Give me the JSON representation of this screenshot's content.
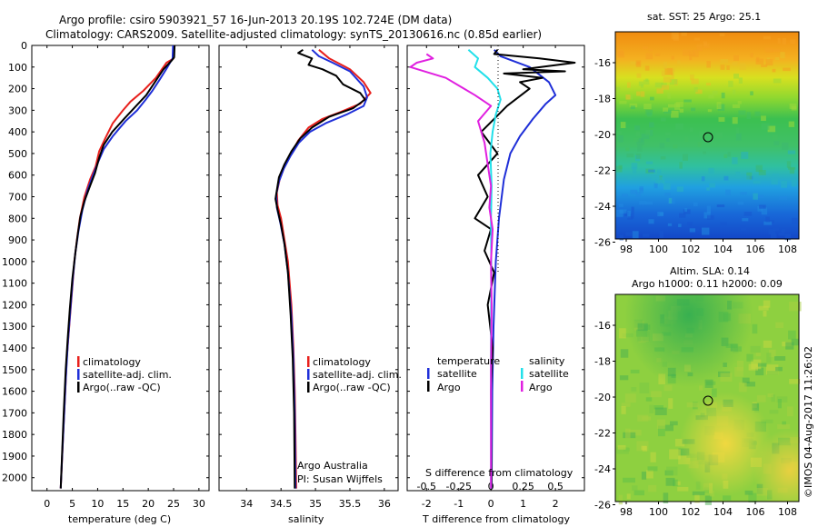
{
  "header": {
    "line1": "Argo profile: csiro 5903921_57 16-Jun-2013 20.19S 102.724E (DM data)",
    "line2": "Climatology: CARS2009. Satellite-adjusted climatology: synTS_20130616.nc (0.85d earlier)"
  },
  "colors": {
    "climatology": "#e8201c",
    "satellite": "#1f2fd8",
    "argo": "#000000",
    "sat_temp": "#1f2fd8",
    "sat_sal": "#22e0ea",
    "argo_sal": "#e020e0"
  },
  "chart_data": [
    {
      "type": "line",
      "name": "temperature-profile",
      "xlabel": "temperature (deg C)",
      "xlim": [
        -3,
        32
      ],
      "xticks": [
        0,
        5,
        10,
        15,
        20,
        25,
        30
      ],
      "ylim": [
        0,
        2060
      ],
      "yticks": [
        0,
        100,
        200,
        300,
        400,
        500,
        600,
        700,
        800,
        900,
        1000,
        1100,
        1200,
        1300,
        1400,
        1500,
        1600,
        1700,
        1800,
        1900,
        2000
      ],
      "legend": [
        "climatology",
        "satellite-adj. clim.",
        "Argo(..raw -QC)"
      ],
      "series": [
        {
          "name": "climatology",
          "color": "#e8201c",
          "points": [
            [
              25,
              0
            ],
            [
              25,
              60
            ],
            [
              23.6,
              80
            ],
            [
              21.5,
              150
            ],
            [
              19,
              210
            ],
            [
              16.5,
              260
            ],
            [
              15,
              300
            ],
            [
              13,
              360
            ],
            [
              11.5,
              430
            ],
            [
              10.3,
              490
            ],
            [
              9.6,
              560
            ],
            [
              8.5,
              620
            ],
            [
              7.4,
              700
            ],
            [
              6.5,
              800
            ],
            [
              5.9,
              900
            ],
            [
              5.4,
              1000
            ],
            [
              4.9,
              1150
            ],
            [
              4.4,
              1300
            ],
            [
              3.9,
              1450
            ],
            [
              3.6,
              1600
            ],
            [
              3.2,
              1800
            ],
            [
              2.9,
              1950
            ],
            [
              2.7,
              2050
            ]
          ]
        },
        {
          "name": "satellite-adj. clim.",
          "color": "#1f2fd8",
          "points": [
            [
              24.9,
              0
            ],
            [
              24.8,
              60
            ],
            [
              23.8,
              100
            ],
            [
              22.2,
              160
            ],
            [
              20.8,
              210
            ],
            [
              19.5,
              250
            ],
            [
              17.8,
              300
            ],
            [
              15.5,
              350
            ],
            [
              13,
              420
            ],
            [
              11.2,
              480
            ],
            [
              10.1,
              540
            ],
            [
              9.1,
              600
            ],
            [
              8,
              670
            ],
            [
              7,
              760
            ],
            [
              6.2,
              860
            ],
            [
              5.6,
              960
            ],
            [
              5.1,
              1080
            ],
            [
              4.6,
              1230
            ],
            [
              4.1,
              1380
            ],
            [
              3.7,
              1550
            ],
            [
              3.3,
              1750
            ],
            [
              3,
              1900
            ],
            [
              2.7,
              2050
            ]
          ]
        },
        {
          "name": "Argo(..raw -QC)",
          "color": "#000000",
          "points": [
            [
              25.2,
              0
            ],
            [
              25.1,
              55
            ],
            [
              24.6,
              70
            ],
            [
              23,
              110
            ],
            [
              21.3,
              170
            ],
            [
              19.6,
              230
            ],
            [
              17.6,
              280
            ],
            [
              15.2,
              340
            ],
            [
              12.9,
              400
            ],
            [
              11.2,
              460
            ],
            [
              10.3,
              520
            ],
            [
              9.5,
              590
            ],
            [
              8.5,
              650
            ],
            [
              7.4,
              720
            ],
            [
              6.6,
              790
            ],
            [
              6.1,
              870
            ],
            [
              5.6,
              960
            ],
            [
              5,
              1080
            ],
            [
              4.5,
              1220
            ],
            [
              4.1,
              1350
            ],
            [
              3.7,
              1500
            ],
            [
              3.3,
              1700
            ],
            [
              3,
              1880
            ],
            [
              2.7,
              2050
            ]
          ]
        }
      ]
    },
    {
      "type": "line",
      "name": "salinity-profile",
      "xlabel": "salinity",
      "xlim": [
        33.6,
        36.2
      ],
      "xticks": [
        34,
        34.5,
        35,
        35.5,
        36
      ],
      "ylim": [
        0,
        2060
      ],
      "legend": [
        "climatology",
        "satellite-adj. clim.",
        "Argo(..raw -QC)"
      ],
      "credits": [
        "Argo Australia",
        "PI: Susan Wijffels"
      ],
      "series": [
        {
          "name": "climatology",
          "color": "#e8201c",
          "points": [
            [
              35.05,
              20
            ],
            [
              35.2,
              60
            ],
            [
              35.5,
              110
            ],
            [
              35.7,
              170
            ],
            [
              35.8,
              220
            ],
            [
              35.65,
              270
            ],
            [
              35.35,
              310
            ],
            [
              35.1,
              340
            ],
            [
              34.9,
              380
            ],
            [
              34.75,
              440
            ],
            [
              34.65,
              500
            ],
            [
              34.55,
              560
            ],
            [
              34.48,
              620
            ],
            [
              34.44,
              680
            ],
            [
              34.45,
              740
            ],
            [
              34.5,
              800
            ],
            [
              34.55,
              900
            ],
            [
              34.6,
              1000
            ],
            [
              34.65,
              1200
            ],
            [
              34.68,
              1400
            ],
            [
              34.7,
              1600
            ],
            [
              34.71,
              1800
            ],
            [
              34.72,
              2050
            ]
          ]
        },
        {
          "name": "satellite-adj. clim.",
          "color": "#1f2fd8",
          "points": [
            [
              34.95,
              20
            ],
            [
              35.05,
              50
            ],
            [
              35.25,
              80
            ],
            [
              35.5,
              120
            ],
            [
              35.7,
              190
            ],
            [
              35.75,
              240
            ],
            [
              35.7,
              280
            ],
            [
              35.45,
              320
            ],
            [
              35.15,
              360
            ],
            [
              34.92,
              400
            ],
            [
              34.76,
              450
            ],
            [
              34.64,
              510
            ],
            [
              34.54,
              570
            ],
            [
              34.47,
              630
            ],
            [
              34.43,
              690
            ],
            [
              34.44,
              750
            ],
            [
              34.49,
              820
            ],
            [
              34.55,
              920
            ],
            [
              34.6,
              1050
            ],
            [
              34.65,
              1250
            ],
            [
              34.68,
              1450
            ],
            [
              34.7,
              1700
            ],
            [
              34.71,
              2050
            ]
          ]
        },
        {
          "name": "Argo(..raw -QC)",
          "color": "#000000",
          "points": [
            [
              34.82,
              20
            ],
            [
              34.75,
              35
            ],
            [
              34.95,
              60
            ],
            [
              34.9,
              90
            ],
            [
              35.1,
              110
            ],
            [
              35.3,
              140
            ],
            [
              35.4,
              180
            ],
            [
              35.65,
              220
            ],
            [
              35.72,
              250
            ],
            [
              35.55,
              290
            ],
            [
              35.2,
              330
            ],
            [
              34.95,
              380
            ],
            [
              34.78,
              430
            ],
            [
              34.65,
              490
            ],
            [
              34.55,
              550
            ],
            [
              34.47,
              610
            ],
            [
              34.44,
              670
            ],
            [
              34.42,
              710
            ],
            [
              34.45,
              760
            ],
            [
              34.5,
              830
            ],
            [
              34.55,
              920
            ],
            [
              34.6,
              1050
            ],
            [
              34.64,
              1250
            ],
            [
              34.67,
              1450
            ],
            [
              34.69,
              1700
            ],
            [
              34.7,
              2050
            ]
          ]
        }
      ]
    },
    {
      "type": "line",
      "name": "difference-profile",
      "xlabel": "T difference from climatology",
      "xlabel_top": "S difference from climatology",
      "xlim": [
        -2.6,
        2.9
      ],
      "xticks_T": [
        -2,
        -1,
        0,
        1,
        2
      ],
      "xticks_S": [
        -0.5,
        -0.25,
        0,
        0.25,
        0.5
      ],
      "ylim": [
        0,
        2060
      ],
      "legend_temperature": [
        "temperature",
        "satellite",
        "Argo"
      ],
      "legend_salinity": [
        "salinity",
        "satellite",
        "Argo"
      ],
      "series": [
        {
          "name": "temperature satellite",
          "color": "#1f2fd8",
          "points": [
            [
              0.1,
              20
            ],
            [
              0.3,
              50
            ],
            [
              1.2,
              100
            ],
            [
              1.8,
              170
            ],
            [
              2,
              230
            ],
            [
              1.7,
              270
            ],
            [
              1.3,
              340
            ],
            [
              0.9,
              420
            ],
            [
              0.6,
              500
            ],
            [
              0.4,
              620
            ],
            [
              0.25,
              800
            ],
            [
              0.15,
              1000
            ],
            [
              0.08,
              1300
            ],
            [
              0.04,
              1600
            ],
            [
              0.02,
              2050
            ]
          ]
        },
        {
          "name": "temperature Argo",
          "color": "#000000",
          "points": [
            [
              0.2,
              20
            ],
            [
              0.1,
              40
            ],
            [
              1.5,
              60
            ],
            [
              2.6,
              80
            ],
            [
              1,
              110
            ],
            [
              2.3,
              120
            ],
            [
              0.4,
              130
            ],
            [
              1.6,
              150
            ],
            [
              0.9,
              170
            ],
            [
              1.2,
              200
            ],
            [
              0.5,
              280
            ],
            [
              -0.3,
              400
            ],
            [
              0.2,
              500
            ],
            [
              -0.4,
              600
            ],
            [
              -0.1,
              700
            ],
            [
              -0.5,
              800
            ],
            [
              0,
              850
            ],
            [
              -0.2,
              950
            ],
            [
              0.1,
              1050
            ],
            [
              -0.1,
              1200
            ],
            [
              0.05,
              1400
            ],
            [
              0,
              1600
            ],
            [
              0.02,
              2050
            ]
          ]
        },
        {
          "name": "salinity satellite",
          "color": "#22e0ea",
          "points": [
            [
              -0.7,
              20
            ],
            [
              -0.4,
              60
            ],
            [
              -0.5,
              100
            ],
            [
              -0.1,
              150
            ],
            [
              0.2,
              200
            ],
            [
              0.3,
              250
            ],
            [
              0.15,
              320
            ],
            [
              0.05,
              400
            ],
            [
              -0.02,
              500
            ],
            [
              0.02,
              650
            ],
            [
              0,
              800
            ],
            [
              0.01,
              1000
            ],
            [
              0,
              1400
            ],
            [
              0,
              2050
            ]
          ]
        },
        {
          "name": "salinity Argo",
          "color": "#e020e0",
          "points": [
            [
              -2,
              40
            ],
            [
              -1.8,
              60
            ],
            [
              -2.3,
              80
            ],
            [
              -2.5,
              100
            ],
            [
              -1.4,
              150
            ],
            [
              -0.5,
              230
            ],
            [
              0,
              280
            ],
            [
              -0.4,
              350
            ],
            [
              -0.2,
              450
            ],
            [
              -0.1,
              550
            ],
            [
              0,
              650
            ],
            [
              -0.05,
              750
            ],
            [
              0.05,
              850
            ],
            [
              0,
              1000
            ],
            [
              0.02,
              1200
            ],
            [
              0,
              1500
            ],
            [
              0,
              2050
            ]
          ]
        }
      ]
    }
  ],
  "maps": {
    "sst": {
      "title": "sat. SST: 25 Argo: 25.1",
      "xticks": [
        98,
        100,
        102,
        104,
        106,
        108
      ],
      "yticks": [
        -16,
        -18,
        -20,
        -22,
        -24,
        -26
      ]
    },
    "sla": {
      "title_line1": "Altim. SLA: 0.14",
      "title_line2": "Argo h1000: 0.11 h2000: 0.09",
      "xticks": [
        98,
        100,
        102,
        104,
        106,
        108
      ],
      "yticks": [
        -16,
        -18,
        -20,
        -22,
        -24,
        -26
      ]
    }
  },
  "credit": "©IMOS 04-Aug-2017 11:26:02"
}
